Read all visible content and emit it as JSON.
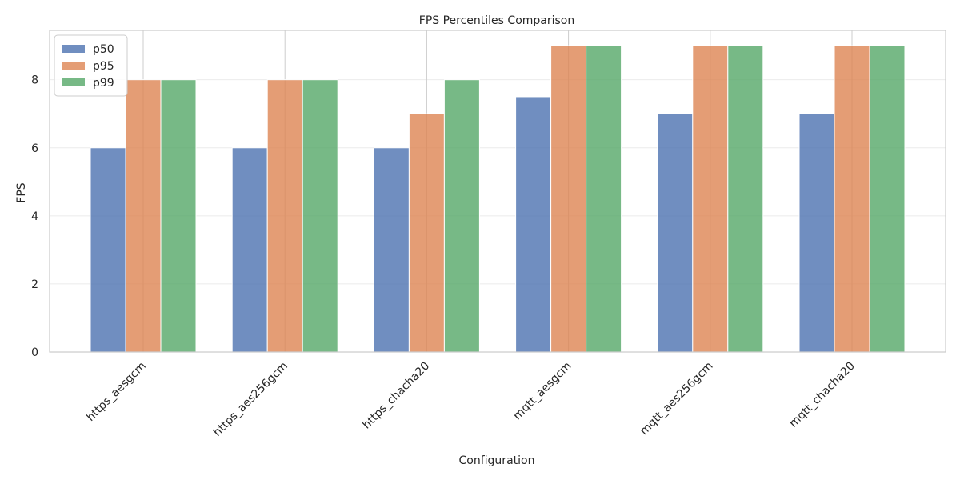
{
  "chart_data": {
    "type": "bar",
    "title": "FPS Percentiles Comparison",
    "xlabel": "Configuration",
    "ylabel": "FPS",
    "categories": [
      "https_aesgcm",
      "https_aes256gcm",
      "https_chacha20",
      "mqtt_aesgcm",
      "mqtt_aes256gcm",
      "mqtt_chacha20"
    ],
    "series": [
      {
        "name": "p50",
        "color": "#4c72b0",
        "values": [
          6,
          6,
          6,
          7.5,
          7,
          7
        ]
      },
      {
        "name": "p95",
        "color": "#dd8452",
        "values": [
          8,
          8,
          7,
          9,
          9,
          9
        ]
      },
      {
        "name": "p99",
        "color": "#55a868",
        "values": [
          8,
          8,
          8,
          9,
          9,
          9
        ]
      }
    ],
    "ylim": [
      0,
      9.45
    ],
    "yticks": [
      0,
      2,
      4,
      6,
      8
    ],
    "grid": true,
    "legend_position": "top-left"
  }
}
